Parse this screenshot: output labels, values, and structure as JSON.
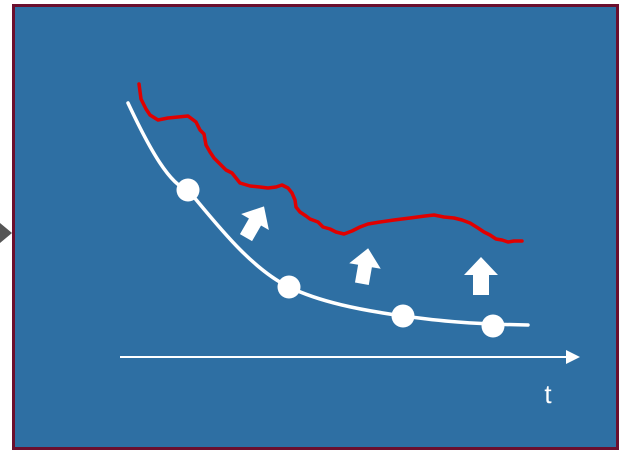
{
  "panel": {
    "background_color": "#2e6fa3",
    "border_color": "#6b0f2e"
  },
  "colors": {
    "baseline_curve": "#ffffff",
    "observed_curve": "#e00000",
    "arrows": "#ffffff",
    "axis": "#ffffff",
    "incoming_arrow": "#555555"
  },
  "axis": {
    "x_label": "t"
  },
  "icons": {
    "up_arrow": "up-arrow-icon",
    "incoming_arrow": "incoming-arrow-icon"
  },
  "markers": {
    "count": 4,
    "style": "white-filled-circle"
  },
  "upward_arrows": {
    "count": 3,
    "meaning": "shift-up"
  }
}
